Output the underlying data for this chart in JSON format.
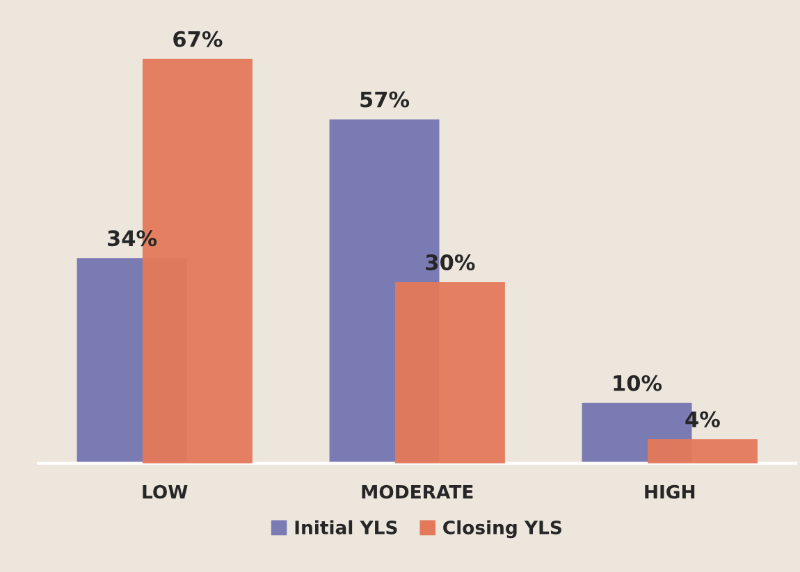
{
  "chart_data": {
    "type": "bar",
    "categories": [
      "LOW",
      "MODERATE",
      "HIGH"
    ],
    "series": [
      {
        "name": "Initial YLS",
        "color": "#7b7bb4",
        "values": [
          34,
          57,
          10
        ],
        "value_labels": [
          "34%",
          "57%",
          "10%"
        ]
      },
      {
        "name": "Closing YLS",
        "color": "#e4795a",
        "values": [
          67,
          30,
          4
        ],
        "value_labels": [
          "67%",
          "30%",
          "4%"
        ]
      }
    ],
    "tick_labels": "x",
    "legend": "bottom"
  }
}
